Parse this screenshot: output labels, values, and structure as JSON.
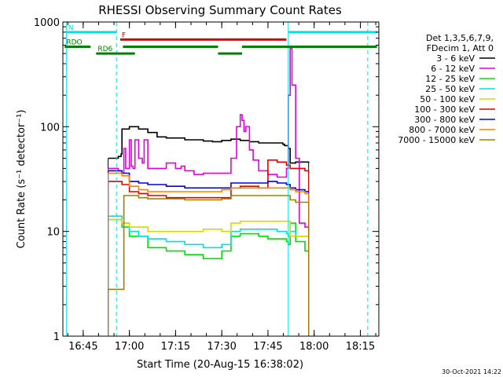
{
  "chart_data": {
    "type": "line",
    "title": "RHESSI Observing Summary Count Rates",
    "xlabel": "Start Time (20-Aug-15 16:38:02)",
    "ylabel": "Count Rate (s⁻¹ detector⁻¹)",
    "yscale": "log",
    "xlim": [
      16.64,
      18.35
    ],
    "ylim": [
      1,
      1000
    ],
    "x_ticks": [
      {
        "value": 16.75,
        "label": "16:45"
      },
      {
        "value": 17.0,
        "label": "17:00"
      },
      {
        "value": 17.25,
        "label": "17:15"
      },
      {
        "value": 17.5,
        "label": "17:30"
      },
      {
        "value": 17.75,
        "label": "17:45"
      },
      {
        "value": 18.0,
        "label": "18:00"
      },
      {
        "value": 18.25,
        "label": "18:15"
      }
    ],
    "y_ticks": [
      {
        "value": 1,
        "label": "1"
      },
      {
        "value": 10,
        "label": "10"
      },
      {
        "value": 100,
        "label": "100"
      },
      {
        "value": 1000,
        "label": "1000"
      }
    ],
    "legend": {
      "placement": "right",
      "header": [
        "Det 1,3,5,6,7,9,",
        "FDecim 1, Att 0"
      ]
    },
    "series": [
      {
        "name": "3 - 6 keV",
        "color": "#000000",
        "x": [
          16.885,
          16.94,
          16.955,
          16.96,
          17.0,
          17.05,
          17.1,
          17.15,
          17.2,
          17.3,
          17.4,
          17.45,
          17.5,
          17.55,
          17.6,
          17.65,
          17.7,
          17.75,
          17.8,
          17.83,
          17.84,
          17.86,
          17.87,
          17.9,
          17.95,
          17.97
        ],
        "y": [
          50,
          52,
          55,
          95,
          100,
          95,
          88,
          80,
          78,
          75,
          73,
          72,
          74,
          76,
          74,
          72,
          70,
          70,
          70,
          68,
          66,
          62,
          45,
          46,
          46,
          45
        ]
      },
      {
        "name": "6 - 12 keV",
        "color": "#e000e0",
        "x": [
          16.885,
          16.94,
          16.96,
          16.97,
          16.98,
          17.0,
          17.01,
          17.02,
          17.03,
          17.05,
          17.07,
          17.08,
          17.1,
          17.15,
          17.2,
          17.25,
          17.28,
          17.3,
          17.35,
          17.4,
          17.5,
          17.55,
          17.58,
          17.6,
          17.61,
          17.62,
          17.63,
          17.65,
          17.67,
          17.7,
          17.75,
          17.8,
          17.85,
          17.86,
          17.87,
          17.88,
          17.9,
          17.92,
          17.95,
          17.97
        ],
        "y": [
          40,
          38,
          36,
          62,
          40,
          75,
          42,
          40,
          75,
          50,
          45,
          75,
          40,
          40,
          45,
          40,
          42,
          38,
          35,
          36,
          36,
          50,
          100,
          130,
          115,
          90,
          100,
          60,
          48,
          38,
          35,
          33,
          40,
          200,
          560,
          250,
          50,
          12,
          11,
          10
        ]
      },
      {
        "name": "12 - 25 keV",
        "color": "#00e000",
        "x": [
          16.885,
          16.96,
          17.0,
          17.1,
          17.2,
          17.3,
          17.4,
          17.5,
          17.55,
          17.6,
          17.7,
          17.75,
          17.8,
          17.85,
          17.86,
          17.87,
          17.9,
          17.95,
          17.97
        ],
        "y": [
          13,
          11,
          9,
          7,
          6.5,
          6,
          5.5,
          6.5,
          9,
          9.5,
          9,
          8.5,
          8.5,
          8,
          7.5,
          12,
          8,
          6.5,
          6
        ]
      },
      {
        "name": "25 - 50 keV",
        "color": "#00e0e0",
        "x": [
          16.885,
          16.96,
          17.0,
          17.05,
          17.1,
          17.2,
          17.3,
          17.4,
          17.5,
          17.55,
          17.6,
          17.7,
          17.8,
          17.85,
          17.86,
          17.87,
          17.9,
          17.97
        ],
        "y": [
          14,
          12,
          10,
          9,
          8.5,
          8,
          7.5,
          7,
          7.5,
          10,
          10.5,
          10.5,
          10,
          9.5,
          9,
          10,
          9,
          9
        ]
      },
      {
        "name": "50 - 100 keV",
        "color": "#d8d800",
        "x": [
          16.885,
          16.96,
          17.0,
          17.1,
          17.2,
          17.3,
          17.4,
          17.5,
          17.55,
          17.6,
          17.7,
          17.8,
          17.85,
          17.87,
          17.9,
          17.97
        ],
        "y": [
          13,
          12,
          11,
          10,
          10,
          10,
          10.5,
          10,
          12,
          12.5,
          12.5,
          12.5,
          12.5,
          9,
          9,
          9
        ]
      },
      {
        "name": "100 - 300 keV",
        "color": "#e00000",
        "x": [
          16.885,
          16.96,
          17.0,
          17.05,
          17.1,
          17.2,
          17.3,
          17.4,
          17.5,
          17.55,
          17.6,
          17.7,
          17.75,
          17.8,
          17.85,
          17.87,
          17.9,
          17.95,
          17.97
        ],
        "y": [
          30,
          28,
          24,
          23,
          22,
          21,
          21,
          21,
          21,
          26,
          27,
          26,
          48,
          46,
          43,
          40,
          40,
          38,
          37
        ]
      },
      {
        "name": "300 - 800 keV",
        "color": "#0000e0",
        "x": [
          16.885,
          16.96,
          17.0,
          17.05,
          17.1,
          17.2,
          17.3,
          17.4,
          17.5,
          17.55,
          17.6,
          17.65,
          17.7,
          17.75,
          17.8,
          17.85,
          17.87,
          17.9,
          17.95,
          17.97
        ],
        "y": [
          38,
          36,
          30,
          29,
          28,
          27,
          26,
          26,
          26,
          29,
          29,
          29,
          29,
          30,
          29,
          28,
          26,
          25,
          24,
          24
        ]
      },
      {
        "name": "800 - 7000 keV",
        "color": "#ff8000",
        "x": [
          16.885,
          16.96,
          17.0,
          17.05,
          17.1,
          17.2,
          17.3,
          17.4,
          17.5,
          17.55,
          17.6,
          17.65,
          17.7,
          17.75,
          17.8,
          17.85,
          17.87,
          17.9,
          17.95,
          17.97
        ],
        "y": [
          36,
          34,
          27,
          25,
          24,
          24,
          24,
          24,
          25,
          26,
          26,
          26,
          26,
          26,
          26,
          26,
          25,
          24,
          23,
          23
        ]
      },
      {
        "name": "7000 - 15000 keV",
        "color": "#a08000",
        "x": [
          16.885,
          16.96,
          16.97,
          17.05,
          17.1,
          17.2,
          17.3,
          17.4,
          17.45,
          17.5,
          17.55,
          17.6,
          17.65,
          17.7,
          17.75,
          17.8,
          17.85,
          17.87,
          17.9,
          17.97
        ],
        "y": [
          2.8,
          2.8,
          22,
          21,
          20.5,
          20.5,
          20,
          20,
          20,
          20.5,
          22,
          22,
          22,
          22,
          22,
          22,
          22,
          20,
          19,
          19
        ]
      }
    ],
    "annotations": [
      {
        "label": "N",
        "color": "#00e0e0",
        "segments": [
          [
            16.66,
            16.93
          ],
          [
            17.86,
            18.34
          ]
        ],
        "level": 800
      },
      {
        "label": "F",
        "color": "#e00000",
        "segments": [
          [
            16.95,
            17.85
          ]
        ],
        "level": 680
      },
      {
        "label": "RDO",
        "color": "#008000",
        "segments": [
          [
            16.65,
            16.79
          ]
        ],
        "level": 580
      },
      {
        "label": "",
        "color": "#008000",
        "segments": [
          [
            16.965,
            17.48
          ],
          [
            17.61,
            18.34
          ]
        ],
        "level": 580
      },
      {
        "label": "RD6",
        "color": "#008000",
        "segments": [
          [
            16.82,
            17.03
          ],
          [
            17.48,
            17.61
          ]
        ],
        "level": 500
      }
    ],
    "vlines": [
      {
        "x": 16.66,
        "color": "#00e0e0",
        "style": "solid"
      },
      {
        "x": 16.93,
        "color": "#00e0e0",
        "style": "dashed"
      },
      {
        "x": 17.86,
        "color": "#00e0e0",
        "style": "solid"
      },
      {
        "x": 18.29,
        "color": "#00e0e0",
        "style": "dashed"
      }
    ],
    "footer": "30-Oct-2021 14:22"
  }
}
